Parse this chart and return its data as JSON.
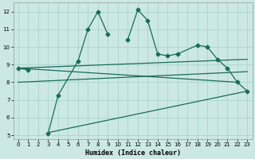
{
  "xlabel": "Humidex (Indice chaleur)",
  "bg_color": "#cce8e4",
  "grid_color": "#aad4d0",
  "line_color": "#1a6b5a",
  "xlim": [
    -0.5,
    23.5
  ],
  "ylim": [
    4.8,
    12.5
  ],
  "xticks": [
    0,
    1,
    2,
    3,
    4,
    5,
    6,
    7,
    8,
    9,
    10,
    11,
    12,
    13,
    14,
    15,
    16,
    17,
    18,
    19,
    20,
    21,
    22,
    23
  ],
  "yticks": [
    5,
    6,
    7,
    8,
    9,
    10,
    11,
    12
  ],
  "jagged_segments": [
    {
      "x": [
        0,
        1
      ],
      "y": [
        8.8,
        8.7
      ]
    },
    {
      "x": [
        3,
        4,
        6,
        7,
        8,
        9
      ],
      "y": [
        5.1,
        7.25,
        9.2,
        11.0,
        12.0,
        10.7
      ]
    },
    {
      "x": [
        11,
        12,
        13,
        14,
        15,
        16,
        18,
        19,
        20,
        21,
        22,
        23
      ],
      "y": [
        10.4,
        12.1,
        11.5,
        9.6,
        9.5,
        9.6,
        10.1,
        10.0,
        9.3,
        8.8,
        8.0,
        7.5
      ]
    }
  ],
  "straight_line1": {
    "x": [
      0,
      23
    ],
    "y": [
      8.8,
      9.3
    ]
  },
  "straight_line2": {
    "x": [
      0,
      23
    ],
    "y": [
      8.0,
      8.6
    ]
  },
  "straight_line3": {
    "x": [
      3,
      23
    ],
    "y": [
      5.15,
      7.5
    ]
  },
  "straight_line4": {
    "x": [
      0,
      22
    ],
    "y": [
      8.8,
      8.0
    ]
  },
  "marker": "D",
  "markersize": 2.5,
  "linewidth": 0.9
}
